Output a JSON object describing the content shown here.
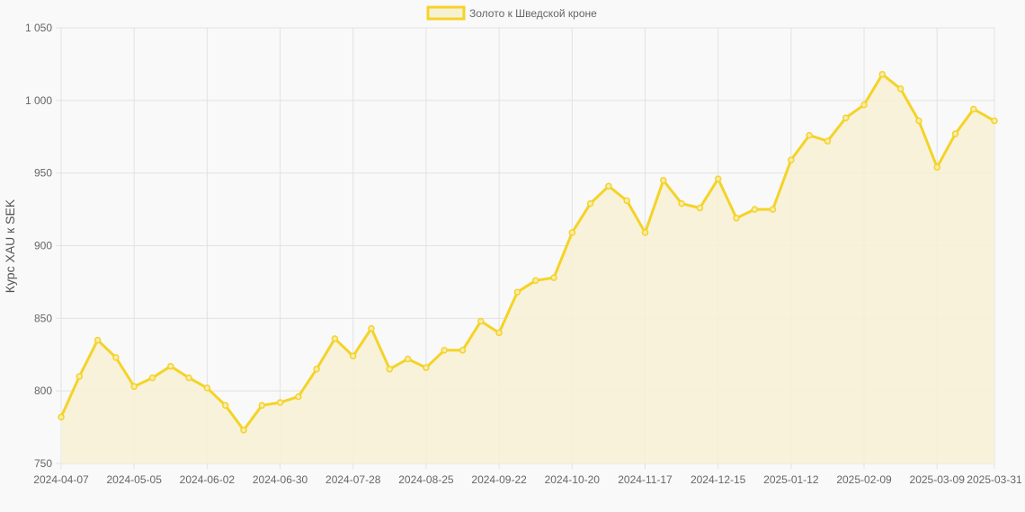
{
  "chart_data": {
    "type": "area",
    "title": "",
    "xlabel": "",
    "ylabel": "Курс XAU к SEK",
    "ylim": [
      750,
      1050
    ],
    "y_ticks": [
      750,
      800,
      850,
      900,
      950,
      1000,
      1050
    ],
    "y_tick_labels": [
      "750",
      "800",
      "850",
      "900",
      "950",
      "1 000",
      "1 050"
    ],
    "x_tick_labels": [
      "2024-04-07",
      "2024-05-05",
      "2024-06-02",
      "2024-06-30",
      "2024-07-28",
      "2024-08-25",
      "2024-09-22",
      "2024-10-20",
      "2024-11-17",
      "2024-12-15",
      "2025-01-12",
      "2025-02-09",
      "2025-03-09",
      "2025-03-31"
    ],
    "grid": true,
    "legend_position": "top-center",
    "x": [
      "2024-04-07",
      "2024-04-14",
      "2024-04-21",
      "2024-04-28",
      "2024-05-05",
      "2024-05-12",
      "2024-05-19",
      "2024-05-26",
      "2024-06-02",
      "2024-06-09",
      "2024-06-16",
      "2024-06-23",
      "2024-06-30",
      "2024-07-07",
      "2024-07-14",
      "2024-07-21",
      "2024-07-28",
      "2024-08-04",
      "2024-08-11",
      "2024-08-18",
      "2024-08-25",
      "2024-09-01",
      "2024-09-08",
      "2024-09-15",
      "2024-09-22",
      "2024-09-29",
      "2024-10-06",
      "2024-10-13",
      "2024-10-20",
      "2024-10-27",
      "2024-11-03",
      "2024-11-10",
      "2024-11-17",
      "2024-11-24",
      "2024-12-01",
      "2024-12-08",
      "2024-12-15",
      "2024-12-22",
      "2024-12-29",
      "2025-01-05",
      "2025-01-12",
      "2025-01-19",
      "2025-01-26",
      "2025-02-02",
      "2025-02-09",
      "2025-02-16",
      "2025-02-23",
      "2025-03-02",
      "2025-03-09",
      "2025-03-16",
      "2025-03-23",
      "2025-03-31"
    ],
    "series": [
      {
        "name": "Золото к Шведской кроне",
        "color": "#f5d327",
        "fill": "#f7f1d4",
        "values": [
          782,
          810,
          835,
          823,
          803,
          809,
          817,
          809,
          802,
          790,
          773,
          790,
          792,
          796,
          815,
          836,
          824,
          843,
          815,
          822,
          816,
          828,
          828,
          848,
          840,
          868,
          876,
          878,
          909,
          929,
          941,
          931,
          909,
          945,
          929,
          926,
          946,
          919,
          925,
          925,
          959,
          976,
          972,
          988,
          997,
          1018,
          1008,
          986,
          954,
          977,
          994,
          986
        ]
      }
    ]
  }
}
